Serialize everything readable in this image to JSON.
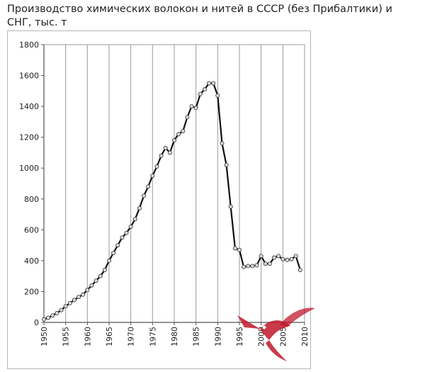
{
  "title": "Производство химических волокон и нитей в СССР (без Прибалтики) и СНГ, тыс. т",
  "chart_data": {
    "type": "line",
    "title": "Производство химических волокон и нитей в СССР (без Прибалтики) и СНГ, тыс. т",
    "xlabel": "",
    "ylabel": "",
    "xlim": [
      1950,
      2010
    ],
    "ylim": [
      0,
      1800
    ],
    "x_ticks": [
      "1950",
      "1955",
      "1960",
      "1965",
      "1970",
      "1975",
      "1980",
      "1985",
      "1990",
      "1995",
      "2000",
      "2005",
      "2010"
    ],
    "y_ticks": [
      "0",
      "200",
      "400",
      "600",
      "800",
      "1000",
      "1200",
      "1400",
      "1600",
      "1800"
    ],
    "grid": "vertical",
    "legend": "none",
    "colors": {
      "line": "#111111",
      "marker_fill": "#d8d8d8",
      "marker_stroke": "#333333",
      "grid": "#9a9a9a",
      "axis": "#555555"
    },
    "series": [
      {
        "x": [
          1950,
          1951,
          1952,
          1953,
          1954,
          1955,
          1956,
          1957,
          1958,
          1959,
          1960,
          1961,
          1962,
          1963,
          1964,
          1965,
          1966,
          1967,
          1968,
          1969,
          1970,
          1971,
          1972,
          1973,
          1974,
          1975,
          1976,
          1977,
          1978,
          1979,
          1980,
          1981,
          1982,
          1983,
          1984,
          1985,
          1986,
          1987,
          1988,
          1989,
          1990,
          1991,
          1992,
          1993,
          1994,
          1995,
          1996,
          1997,
          1998,
          1999,
          2000,
          2001,
          2002,
          2003,
          2004,
          2005,
          2006,
          2007,
          2008,
          2009
        ],
        "y": [
          20,
          30,
          45,
          60,
          80,
          105,
          125,
          145,
          165,
          180,
          210,
          240,
          270,
          300,
          340,
          400,
          450,
          500,
          550,
          580,
          620,
          670,
          740,
          820,
          880,
          950,
          1010,
          1080,
          1130,
          1100,
          1180,
          1220,
          1240,
          1330,
          1400,
          1390,
          1480,
          1510,
          1550,
          1550,
          1470,
          1160,
          1020,
          750,
          480,
          470,
          360,
          365,
          365,
          370,
          430,
          380,
          380,
          420,
          430,
          410,
          405,
          410,
          430,
          340
        ]
      }
    ]
  },
  "watermark": {
    "name": "hummingbird-logo"
  }
}
